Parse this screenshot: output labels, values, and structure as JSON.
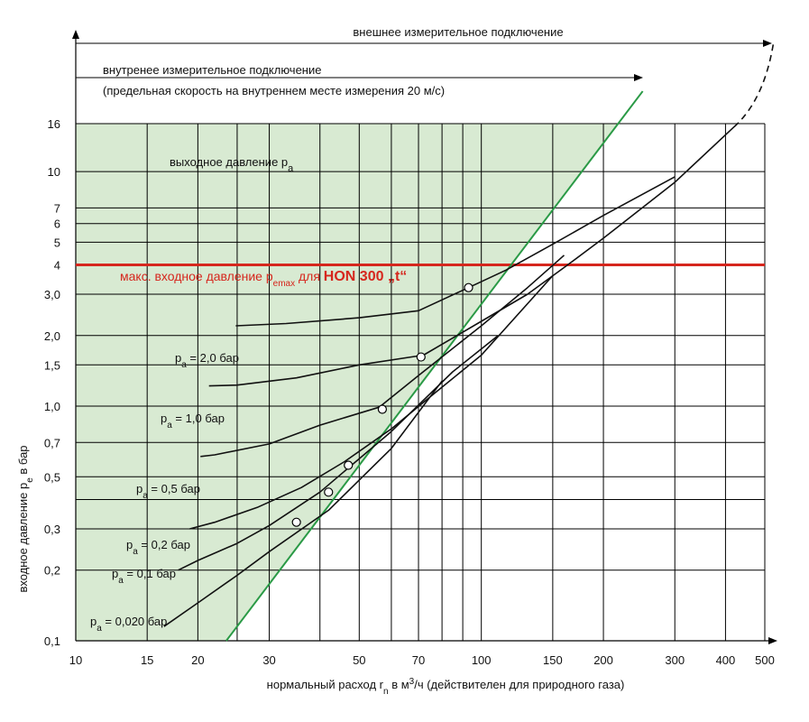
{
  "chart_data": {
    "type": "line",
    "xscale": "log",
    "yscale": "log",
    "xlim": [
      10,
      500
    ],
    "ylim": [
      0.1,
      16
    ],
    "xticks": [
      "10",
      "15",
      "20",
      "30",
      "50",
      "70",
      "100",
      "150",
      "200",
      "300",
      "400",
      "500"
    ],
    "xtick_values": [
      10,
      15,
      20,
      30,
      50,
      70,
      100,
      150,
      200,
      300,
      400,
      500
    ],
    "yticks": [
      "0,1",
      "0,2",
      "0,3",
      "0,5",
      "0,7",
      "1,0",
      "1,5",
      "2,0",
      "3,0",
      "4",
      "5",
      "6",
      "7",
      "10",
      "16"
    ],
    "ytick_values": [
      0.1,
      0.2,
      0.3,
      0.5,
      0.7,
      1.0,
      1.5,
      2.0,
      3.0,
      4,
      5,
      6,
      7,
      10,
      16
    ],
    "xlabel": "нормальный расход rₙ в м³/ч (действителен для природного газа)",
    "xlabel_parts": {
      "a": "нормальный расход r",
      "sub": "n",
      "b": " в м",
      "sup": "3",
      "c": "/ч (действителен для природного газа)"
    },
    "ylabel_parts": {
      "a": "входное давление p",
      "sub": "e",
      "b": " в бар"
    },
    "annotations": {
      "external": "внешнее измерительное подключение",
      "internal": "внутренее измерительное подключение",
      "internal_note": "(предельная скорость на внутреннем месте измерения 20 м/с)",
      "outlet": {
        "a": "выходное давление p",
        "sub": "a"
      },
      "emax": {
        "a": "макс. входное давление p",
        "sub": "emax",
        "b": " для ",
        "model": "HON  300 „t“"
      }
    },
    "emax_value": 4,
    "colors": {
      "region": "#d8ead2",
      "limit": "#2a9a46",
      "emax": "#d6261d",
      "curve": "#111111",
      "grid": "#000000"
    },
    "limit_line": [
      [
        23.5,
        0.1
      ],
      [
        250,
        22
      ]
    ],
    "series": [
      {
        "name": "pa = 2,0 бар",
        "label_value": "2,0",
        "x": [
          24.8,
          33,
          50,
          70,
          93,
          115,
          150,
          200,
          300
        ],
        "y": [
          2.2,
          2.25,
          2.38,
          2.55,
          3.2,
          3.8,
          4.9,
          6.5,
          9.5
        ]
      },
      {
        "name": "pa = 1,0 бар",
        "label_value": "1,0",
        "x": [
          21.3,
          25,
          35,
          50,
          72,
          100,
          130,
          160,
          200,
          300,
          420
        ],
        "y": [
          1.22,
          1.23,
          1.32,
          1.5,
          1.65,
          2.3,
          3.0,
          3.9,
          5.2,
          9.0,
          15.5
        ]
      },
      {
        "name": "pa = 0,5 бар",
        "label_value": "0,5",
        "x": [
          20.3,
          22,
          30,
          40,
          56,
          70,
          100,
          130,
          160
        ],
        "y": [
          0.61,
          0.62,
          0.69,
          0.83,
          0.99,
          1.35,
          2.2,
          3.2,
          4.4
        ]
      },
      {
        "name": "pa = 0,2 бар",
        "label_value": "0,2",
        "x": [
          19.1,
          22,
          28,
          36,
          46,
          60,
          75,
          100,
          150
        ],
        "y": [
          0.3,
          0.32,
          0.37,
          0.45,
          0.58,
          0.8,
          1.1,
          1.65,
          3.6
        ]
      },
      {
        "name": "pa = 0,1 бар",
        "label_value": "0,1",
        "x": [
          17.9,
          20,
          25,
          30,
          40,
          60,
          85,
          110
        ],
        "y": [
          0.2,
          0.22,
          0.26,
          0.31,
          0.43,
          0.78,
          1.4,
          2.0
        ]
      },
      {
        "name": "pa = 0,020 бар",
        "label_value": "0,020",
        "x": [
          16.5,
          20,
          25,
          30,
          42,
          60,
          80
        ],
        "y": [
          0.115,
          0.145,
          0.19,
          0.24,
          0.36,
          0.66,
          1.28
        ]
      }
    ],
    "markers": [
      [
        35,
        0.32
      ],
      [
        42,
        0.43
      ],
      [
        47,
        0.56
      ],
      [
        57,
        0.97
      ],
      [
        71,
        1.62
      ],
      [
        93,
        3.2
      ]
    ],
    "legend_prefix": "p",
    "legend_sub": "a",
    "legend_eq": " = ",
    "legend_unit": " бар"
  }
}
